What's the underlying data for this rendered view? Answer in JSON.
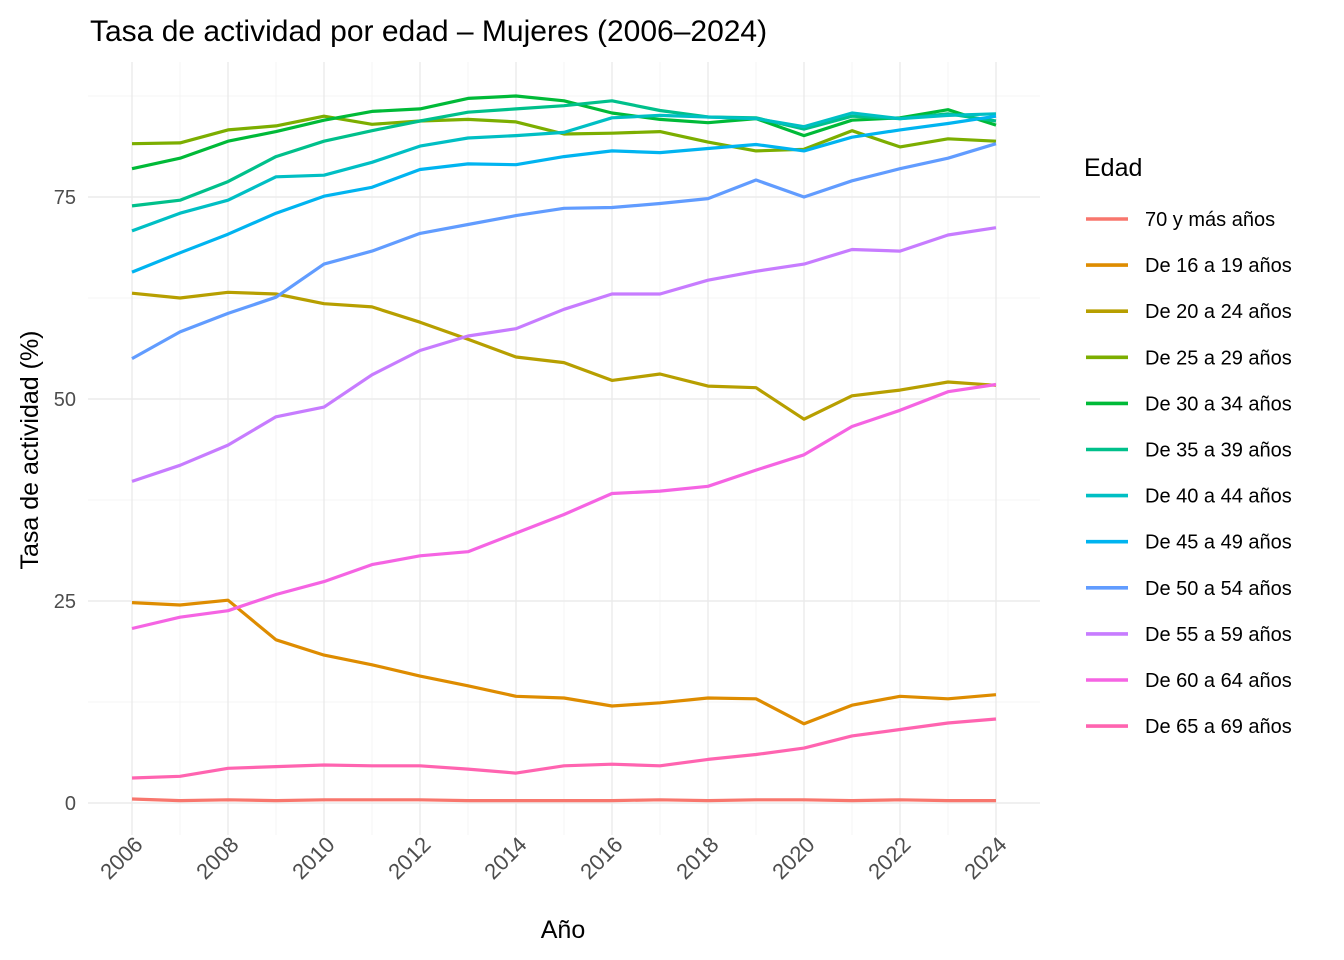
{
  "chart_data": {
    "type": "line",
    "title": "Tasa de actividad por edad – Mujeres (2006–2024)",
    "xlabel": "Año",
    "ylabel": "Tasa de actividad (%)",
    "legend_title": "Edad",
    "legend_position": "right",
    "grid": true,
    "xlim": [
      2006,
      2024
    ],
    "ylim": [
      0,
      87.5
    ],
    "x_ticks": [
      2006,
      2008,
      2010,
      2012,
      2014,
      2016,
      2018,
      2020,
      2022,
      2024
    ],
    "y_ticks": [
      0,
      25,
      50,
      75
    ],
    "x": [
      2006,
      2007,
      2008,
      2009,
      2010,
      2011,
      2012,
      2013,
      2014,
      2015,
      2016,
      2017,
      2018,
      2019,
      2020,
      2021,
      2022,
      2023,
      2024
    ],
    "series": [
      {
        "name": "70 y más años",
        "color": "#F8766D",
        "values": [
          0.5,
          0.3,
          0.4,
          0.3,
          0.4,
          0.4,
          0.4,
          0.3,
          0.3,
          0.3,
          0.3,
          0.4,
          0.3,
          0.4,
          0.4,
          0.3,
          0.4,
          0.3,
          0.3
        ]
      },
      {
        "name": "De 16 a 19 años",
        "color": "#DE8C00",
        "values": [
          24.8,
          24.5,
          25.1,
          20.2,
          18.3,
          17.1,
          15.7,
          14.5,
          13.2,
          13.0,
          12.0,
          12.4,
          13.0,
          12.9,
          9.8,
          12.1,
          13.2,
          12.9,
          13.4
        ]
      },
      {
        "name": "De 20 a 24 años",
        "color": "#B79F00",
        "values": [
          63.1,
          62.5,
          63.2,
          63.0,
          61.8,
          61.4,
          59.5,
          57.4,
          55.2,
          54.5,
          52.3,
          53.1,
          51.6,
          51.4,
          47.5,
          50.4,
          51.1,
          52.1,
          51.7
        ]
      },
      {
        "name": "De 25 a 29 años",
        "color": "#7CAE00",
        "values": [
          81.6,
          81.7,
          83.3,
          83.8,
          85.0,
          84.0,
          84.4,
          84.6,
          84.3,
          82.8,
          82.9,
          83.1,
          81.8,
          80.7,
          80.9,
          83.2,
          81.2,
          82.2,
          81.9
        ]
      },
      {
        "name": "De 30 a 34 años",
        "color": "#00BA38",
        "values": [
          78.5,
          79.8,
          81.9,
          83.1,
          84.5,
          85.6,
          85.9,
          87.2,
          87.5,
          86.9,
          85.4,
          84.6,
          84.2,
          84.7,
          82.6,
          84.5,
          84.8,
          85.8,
          83.9
        ]
      },
      {
        "name": "De 35 a 39 años",
        "color": "#00C08B",
        "values": [
          73.9,
          74.6,
          76.9,
          80.0,
          81.9,
          83.2,
          84.4,
          85.5,
          85.9,
          86.3,
          86.9,
          85.7,
          84.9,
          84.8,
          83.4,
          85.0,
          84.7,
          85.3,
          84.4
        ]
      },
      {
        "name": "De 40 a 44 años",
        "color": "#00BFC4",
        "values": [
          70.8,
          73.0,
          74.6,
          77.5,
          77.7,
          79.3,
          81.3,
          82.3,
          82.6,
          83.0,
          84.8,
          85.1,
          84.9,
          84.7,
          83.7,
          85.4,
          84.7,
          85.1,
          85.3
        ]
      },
      {
        "name": "De 45 a 49 años",
        "color": "#00B4F0",
        "values": [
          65.7,
          68.1,
          70.4,
          73.0,
          75.1,
          76.2,
          78.4,
          79.1,
          79.0,
          80.0,
          80.7,
          80.5,
          81.0,
          81.5,
          80.7,
          82.4,
          83.3,
          84.1,
          85.0
        ]
      },
      {
        "name": "De 50 a 54 años",
        "color": "#619CFF",
        "values": [
          55.0,
          58.3,
          60.6,
          62.6,
          66.7,
          68.3,
          70.5,
          71.6,
          72.7,
          73.6,
          73.7,
          74.2,
          74.8,
          77.1,
          75.0,
          77.0,
          78.5,
          79.8,
          81.6
        ]
      },
      {
        "name": "De 55 a 59 años",
        "color": "#C77CFF",
        "values": [
          39.8,
          41.8,
          44.3,
          47.8,
          49.0,
          53.0,
          56.0,
          57.8,
          58.7,
          61.1,
          63.0,
          63.0,
          64.7,
          65.8,
          66.7,
          68.5,
          68.3,
          70.3,
          71.2
        ]
      },
      {
        "name": "De 60 a 64 años",
        "color": "#F564E3",
        "values": [
          21.6,
          23.0,
          23.8,
          25.8,
          27.4,
          29.5,
          30.6,
          31.1,
          33.4,
          35.7,
          38.3,
          38.6,
          39.2,
          41.2,
          43.1,
          46.6,
          48.6,
          50.9,
          51.8
        ]
      },
      {
        "name": "De 65 a 69 años",
        "color": "#FF64B0",
        "values": [
          3.1,
          3.3,
          4.3,
          4.5,
          4.7,
          4.6,
          4.6,
          4.2,
          3.7,
          4.6,
          4.8,
          4.6,
          5.4,
          6.0,
          6.8,
          8.3,
          9.1,
          9.9,
          10.4
        ]
      }
    ]
  }
}
